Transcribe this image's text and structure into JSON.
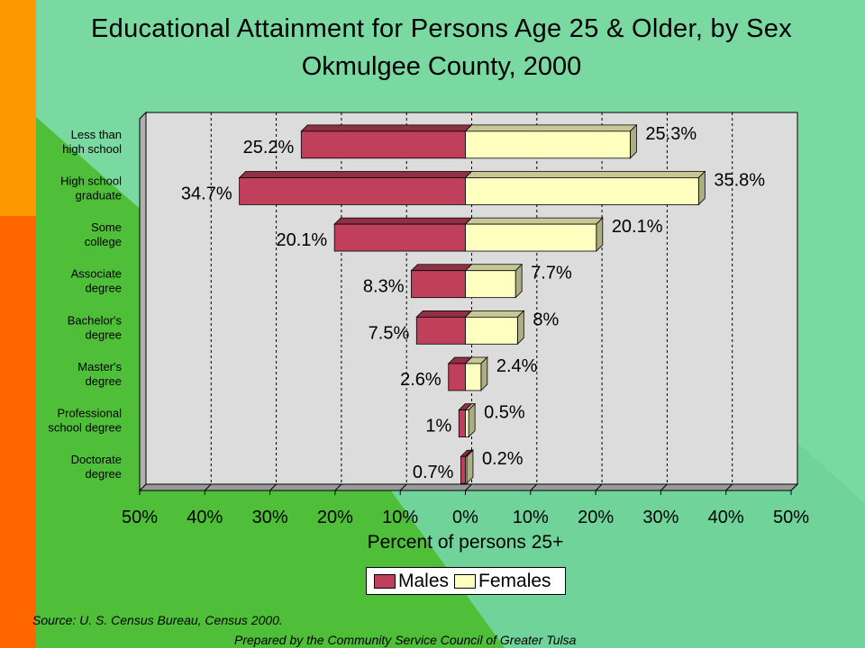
{
  "title": "Educational Attainment for Persons Age 25 & Older, by Sex",
  "subtitle": "Okmulgee County, 2000",
  "source": "Source:  U. S. Census Bureau, Census 2000.",
  "prepared_by": "Prepared by the Community Service Council of Greater Tulsa",
  "colors": {
    "males": "#c0405c",
    "females": "#ffffc0",
    "plot_bg": "#dcdcdc",
    "background": "#4fbf3a"
  },
  "chart_data": {
    "type": "bar",
    "orientation": "horizontal",
    "categories": [
      [
        "Less than",
        "high school"
      ],
      [
        "High school",
        "graduate"
      ],
      [
        "Some",
        "college"
      ],
      [
        "Associate",
        "degree"
      ],
      [
        "Bachelor's",
        "degree"
      ],
      [
        "Master's",
        "degree"
      ],
      [
        "Professional",
        "school degree"
      ],
      [
        "Doctorate",
        "degree"
      ]
    ],
    "series": [
      {
        "name": "Males",
        "values": [
          25.2,
          34.7,
          20.1,
          8.3,
          7.5,
          2.6,
          1,
          0.7
        ],
        "labels": [
          "25.2%",
          "34.7%",
          "20.1%",
          "8.3%",
          "7.5%",
          "2.6%",
          "1%",
          "0.7%"
        ]
      },
      {
        "name": "Females",
        "values": [
          25.3,
          35.8,
          20.1,
          7.7,
          8,
          2.4,
          0.5,
          0.2
        ],
        "labels": [
          "25.3%",
          "35.8%",
          "20.1%",
          "7.7%",
          "8%",
          "2.4%",
          "0.5%",
          "0.2%"
        ]
      }
    ],
    "xlabel": "Percent of persons 25+",
    "xlim": [
      -50,
      50
    ],
    "xticks": [
      -50,
      -40,
      -30,
      -20,
      -10,
      0,
      10,
      20,
      30,
      40,
      50
    ],
    "xtick_labels": [
      "50%",
      "40%",
      "30%",
      "20%",
      "10%",
      "0%",
      "10%",
      "20%",
      "30%",
      "40%",
      "50%"
    ],
    "grid": true,
    "legend": {
      "position": "bottom",
      "entries": [
        "Males",
        "Females"
      ]
    }
  }
}
